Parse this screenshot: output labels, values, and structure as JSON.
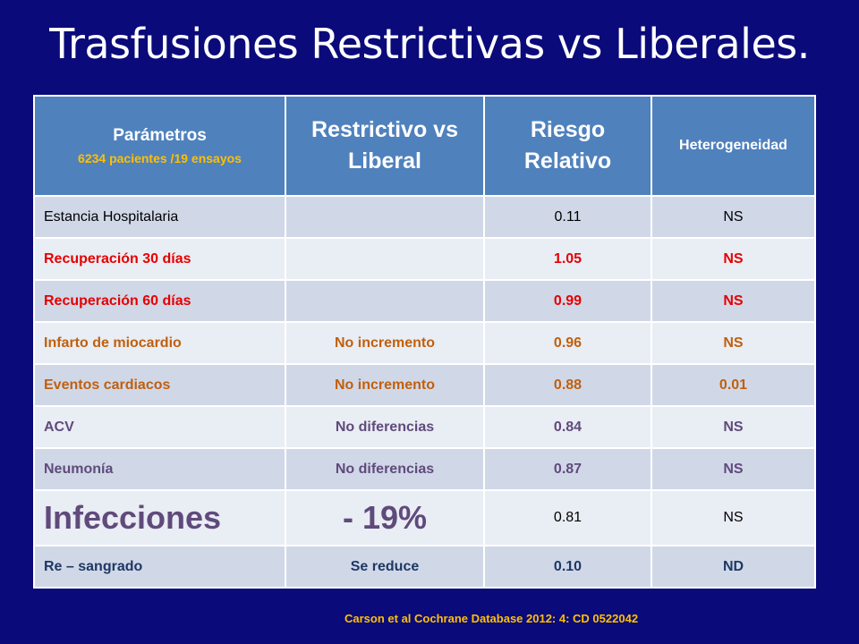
{
  "title": "Trasfusiones Restrictivas vs Liberales.",
  "table": {
    "headers": {
      "col1": "Parámetros",
      "col1_sub": "6234 pacientes /19 ensayos",
      "col2": "Restrictivo vs Liberal",
      "col3": "Riesgo Relativo",
      "col4": "Heterogeneidad"
    },
    "rows": [
      {
        "param": "Estancia Hospitalaria",
        "comparison": "",
        "rr": "0.11",
        "het": "NS"
      },
      {
        "param": "Recuperación 30 días",
        "comparison": "",
        "rr": "1.05",
        "het": "NS"
      },
      {
        "param": "Recuperación 60 días",
        "comparison": "",
        "rr": "0.99",
        "het": "NS"
      },
      {
        "param": "Infarto de miocardio",
        "comparison": "No incremento",
        "rr": "0.96",
        "het": "NS"
      },
      {
        "param": "Eventos cardiacos",
        "comparison": "No incremento",
        "rr": "0.88",
        "het": "0.01"
      },
      {
        "param": "ACV",
        "comparison": "No diferencias",
        "rr": "0.84",
        "het": "NS"
      },
      {
        "param": "Neumonía",
        "comparison": "No diferencias",
        "rr": "0.87",
        "het": "NS"
      },
      {
        "param": "Infecciones",
        "comparison": "- 19%",
        "rr": "0.81",
        "het": "NS"
      },
      {
        "param": "Re – sangrado",
        "comparison": "Se reduce",
        "rr": "0.10",
        "het": "ND"
      }
    ]
  },
  "citation": "Carson et al Cochrane Database 2012: 4: CD 0522042",
  "colors": {
    "background": "#0a0a7a",
    "header": "#4f81bd",
    "accent": "#ffc000",
    "red": "#e60000",
    "brown": "#c0600e",
    "purple": "#604a7b"
  }
}
